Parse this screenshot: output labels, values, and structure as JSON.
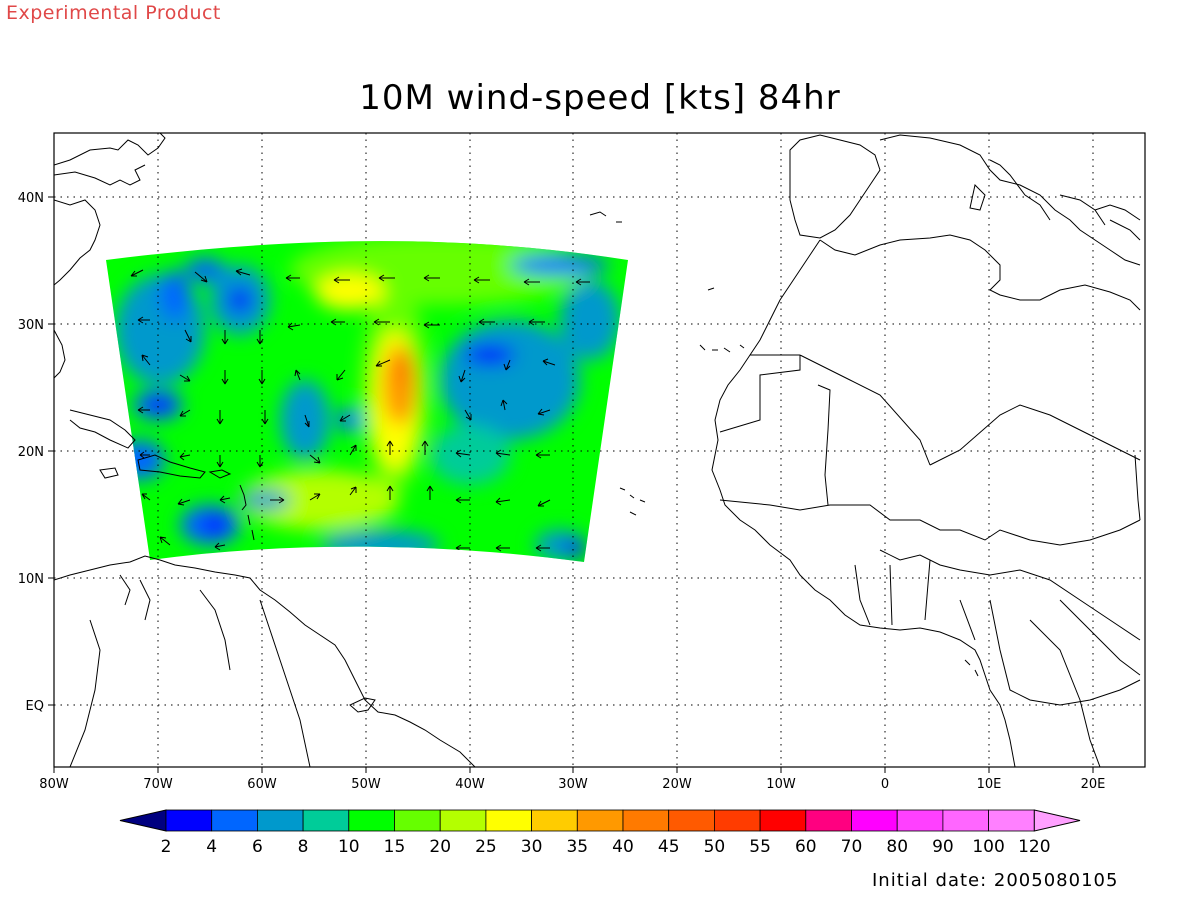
{
  "header": {
    "product_label": "Experimental Product",
    "title": "10M wind-speed [kts] 84hr"
  },
  "map": {
    "lon_range": [
      -80,
      25
    ],
    "lat_range": [
      -6,
      45
    ],
    "lon_ticks": [
      {
        "value": -80,
        "label": "80W"
      },
      {
        "value": -70,
        "label": "70W"
      },
      {
        "value": -60,
        "label": "60W"
      },
      {
        "value": -50,
        "label": "50W"
      },
      {
        "value": -40,
        "label": "40W"
      },
      {
        "value": -30,
        "label": "30W"
      },
      {
        "value": -20,
        "label": "20W"
      },
      {
        "value": -10,
        "label": "10W"
      },
      {
        "value": 0,
        "label": "0"
      },
      {
        "value": 10,
        "label": "10E"
      },
      {
        "value": 20,
        "label": "20E"
      }
    ],
    "lat_ticks": [
      {
        "value": 40,
        "label": "40N"
      },
      {
        "value": 30,
        "label": "30N"
      },
      {
        "value": 20,
        "label": "20N"
      },
      {
        "value": 10,
        "label": "10N"
      },
      {
        "value": 0,
        "label": "EQ"
      }
    ],
    "grid": "dotted",
    "field": "10 m wind speed (kts), model domain over tropical Atlantic",
    "storm_center": {
      "lon": -47,
      "lat": 25,
      "max_speed_kts": 45
    }
  },
  "colorbar": {
    "labels": [
      "2",
      "4",
      "6",
      "8",
      "10",
      "15",
      "20",
      "25",
      "30",
      "35",
      "40",
      "45",
      "50",
      "55",
      "60",
      "70",
      "80",
      "90",
      "100",
      "120"
    ],
    "colors": [
      "#000080",
      "#0000ff",
      "#0066ff",
      "#0099cc",
      "#00cc99",
      "#00ff00",
      "#66ff00",
      "#b4ff00",
      "#ffff00",
      "#ffcc00",
      "#ff9900",
      "#ff7a00",
      "#ff5a00",
      "#ff3c00",
      "#ff0000",
      "#ff0080",
      "#ff00ff",
      "#ff40ff",
      "#ff66ff",
      "#ff80ff",
      "#ffa0ff"
    ]
  },
  "footer": {
    "initial_date": "Initial date: 2005080105"
  }
}
